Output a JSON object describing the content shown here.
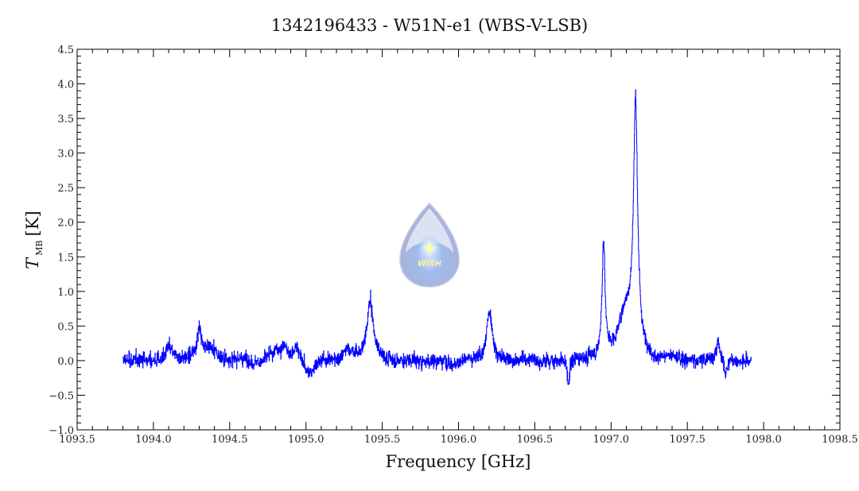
{
  "chart_data": {
    "type": "line",
    "title": "1342196433 - W51N-e1 (WBS-V-LSB)",
    "xlabel": "Frequency [GHz]",
    "ylabel_main": "T",
    "ylabel_sub": "MB",
    "ylabel_unit": "[K]",
    "xlim": [
      1093.5,
      1098.5
    ],
    "ylim": [
      -1.0,
      4.5
    ],
    "x_major_step": 0.5,
    "x_minor_step": 0.1,
    "y_major_step": 0.5,
    "y_minor_step": 0.1,
    "x_tick_labels": [
      "1093.5",
      "1094.0",
      "1094.5",
      "1095.0",
      "1095.5",
      "1096.0",
      "1096.5",
      "1097.0",
      "1097.5",
      "1098.0",
      "1098.5"
    ],
    "y_tick_labels": [
      "-1.0",
      "-0.5",
      "0.0",
      "0.5",
      "1.0",
      "1.5",
      "2.0",
      "2.5",
      "3.0",
      "3.5",
      "4.0",
      "4.5"
    ],
    "grid": false,
    "series": [
      {
        "name": "spectrum",
        "color": "#0000ff",
        "x_range": [
          1093.8,
          1097.92
        ],
        "channel_width": 0.0015,
        "noise_rms": 0.065,
        "baseline": 0.0,
        "features": [
          {
            "center": 1094.1,
            "peak": 0.2,
            "width": 0.02
          },
          {
            "center": 1094.3,
            "peak": 0.45,
            "width": 0.015
          },
          {
            "center": 1094.36,
            "peak": 0.2,
            "width": 0.04
          },
          {
            "center": 1094.8,
            "peak": 0.15,
            "width": 0.03
          },
          {
            "center": 1094.86,
            "peak": 0.22,
            "width": 0.02
          },
          {
            "center": 1094.94,
            "peak": 0.2,
            "width": 0.02
          },
          {
            "center": 1095.02,
            "peak": -0.22,
            "width": 0.03
          },
          {
            "center": 1095.27,
            "peak": 0.15,
            "width": 0.05
          },
          {
            "center": 1095.42,
            "peak": 0.85,
            "width": 0.025
          },
          {
            "center": 1096.2,
            "peak": 0.72,
            "width": 0.022
          },
          {
            "center": 1096.72,
            "peak": -0.38,
            "width": 0.008
          },
          {
            "center": 1096.95,
            "peak": 1.65,
            "width": 0.012
          },
          {
            "center": 1097.1,
            "peak": 0.7,
            "width": 0.06
          },
          {
            "center": 1097.16,
            "peak": 3.5,
            "width": 0.016
          },
          {
            "center": 1097.7,
            "peak": 0.3,
            "width": 0.015
          },
          {
            "center": 1097.75,
            "peak": -0.2,
            "width": 0.012
          }
        ]
      }
    ]
  },
  "watermark": {
    "text": "WISH"
  }
}
